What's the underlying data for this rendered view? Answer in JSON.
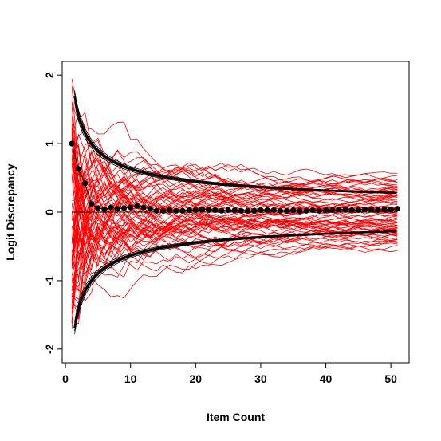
{
  "chart_data": {
    "type": "line",
    "title": "",
    "xlabel": "Item Count",
    "ylabel": "Logit Discrepancy",
    "xlim": [
      -0.5,
      52.8
    ],
    "ylim": [
      -2.2,
      2.2
    ],
    "x_ticks": [
      0,
      10,
      20,
      30,
      40,
      50
    ],
    "y_ticks": [
      -2,
      -1,
      0,
      1,
      2
    ],
    "x_tick_labels": [
      "0",
      "10",
      "20",
      "30",
      "40",
      "50"
    ],
    "y_tick_labels": [
      "-2",
      "-1",
      "0",
      "1",
      "2"
    ],
    "grid": false,
    "legend": "none",
    "colors": {
      "paths": "#ff0000",
      "envelope": "#000000",
      "mean": "#000000"
    },
    "reference_line_y": 0,
    "envelope_formula": "±2/sqrt(x)",
    "series": [
      {
        "role": "mean-discrepancy",
        "x": [
          1,
          2,
          3,
          4,
          5,
          6,
          7,
          8,
          9,
          10,
          11,
          12,
          13,
          14,
          15,
          16,
          17,
          18,
          19,
          20,
          21,
          22,
          23,
          24,
          25,
          26,
          27,
          28,
          29,
          30,
          31,
          32,
          33,
          34,
          35,
          36,
          37,
          38,
          39,
          40,
          41,
          42,
          43,
          44,
          45,
          46,
          47,
          48,
          49,
          50,
          51
        ],
        "values": [
          1.0,
          0.63,
          0.42,
          0.12,
          0.06,
          0.04,
          0.07,
          0.05,
          0.06,
          0.07,
          0.09,
          0.07,
          0.05,
          0.02,
          0.02,
          0.03,
          0.02,
          0.02,
          0.03,
          0.03,
          0.04,
          0.04,
          0.03,
          0.02,
          0.03,
          0.03,
          0.02,
          0.02,
          0.02,
          0.03,
          0.03,
          0.03,
          0.02,
          0.02,
          0.03,
          0.02,
          0.02,
          0.03,
          0.02,
          0.03,
          0.03,
          0.04,
          0.04,
          0.03,
          0.03,
          0.04,
          0.04,
          0.03,
          0.04,
          0.04,
          0.05
        ]
      }
    ]
  }
}
